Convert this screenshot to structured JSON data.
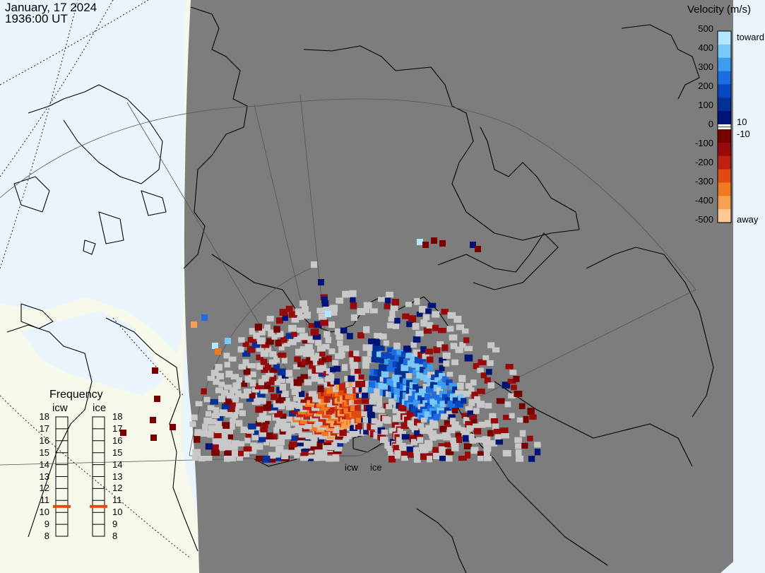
{
  "header": {
    "date": "January, 17 2024",
    "time": "1936:00 UT"
  },
  "colorbar": {
    "title": "Velocity (m/s)",
    "ticks_left": [
      "500",
      "400",
      "300",
      "200",
      "100",
      "0",
      "-100",
      "-200",
      "-300",
      "-400",
      "-500"
    ],
    "label_small_pos": "10",
    "label_small_neg": "-10",
    "label_toward": "toward",
    "label_away": "away",
    "colors_toward": [
      "#b4e6ff",
      "#7ac8f8",
      "#3c9cf0",
      "#1c6ee0",
      "#0a46c0",
      "#003098",
      "#001478"
    ],
    "colors_away": [
      "#780000",
      "#980a0a",
      "#c02010",
      "#e04a10",
      "#f07a20",
      "#f6a050",
      "#fcc896"
    ]
  },
  "frequency_panel": {
    "title": "Frequency",
    "columns": [
      "icw",
      "ice"
    ],
    "scale": [
      "18",
      "17",
      "16",
      "15",
      "14",
      "13",
      "12",
      "11",
      "10",
      "9",
      "8"
    ],
    "selected_mhz": [
      10.5,
      10.5
    ]
  },
  "radar_sites": [
    "icw",
    "ice"
  ],
  "colors": {
    "ocean": "#eaf4fc",
    "land_light": "#f6f8ea",
    "night_shade": "#7d7d7d",
    "ground_scatter": "#c8c8c8",
    "indicator": "#e04a10"
  }
}
